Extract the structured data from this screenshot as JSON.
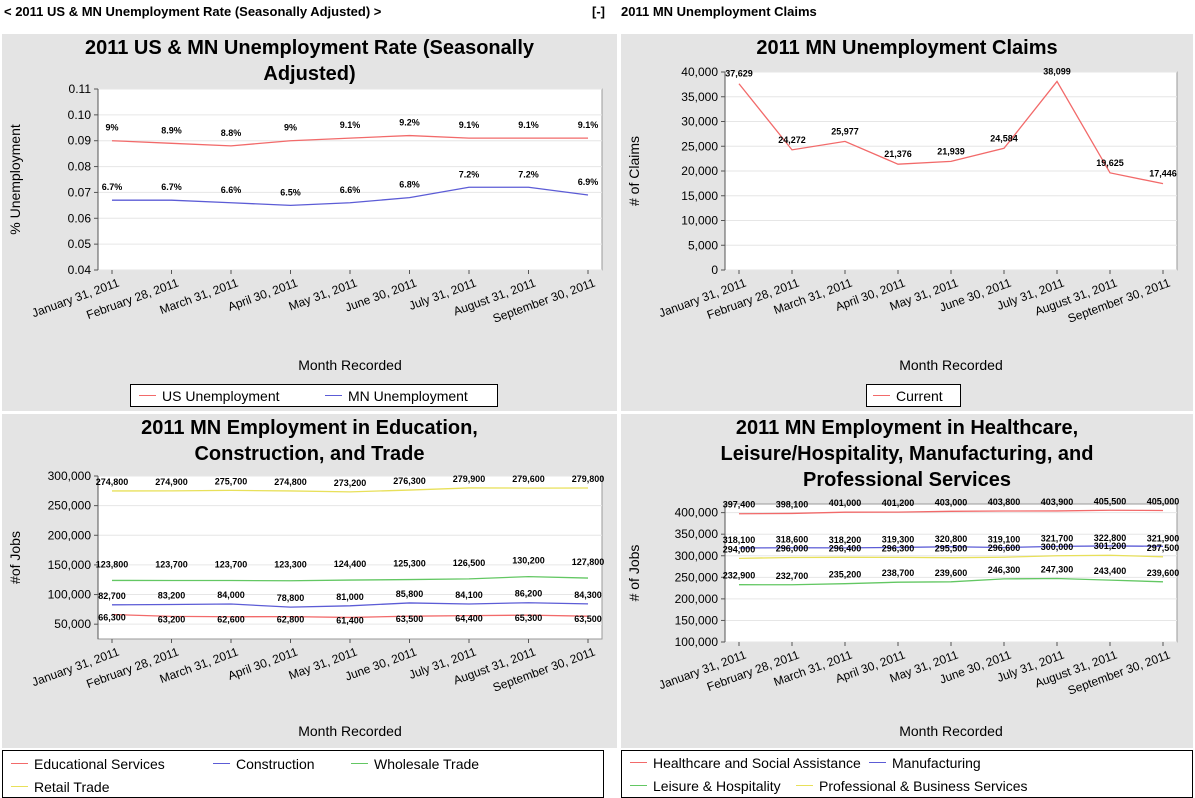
{
  "top_bar": {
    "left_nav": "< 2011 US & MN Unemployment Rate (Seasonally Adjusted) >",
    "toggle": "[-]",
    "right_title": "2011 MN Unemployment Claims"
  },
  "colors": {
    "red": "#f26a6a",
    "blue": "#5c5cd6",
    "green": "#63c763",
    "yellow": "#e8e05a",
    "gridline": "#e6e6e6",
    "panel_bg": "#e4e4e4"
  },
  "chart_data": [
    {
      "id": "chart1",
      "type": "line",
      "title_lines": [
        "2011 US & MN Unemployment Rate (Seasonally",
        "Adjusted)"
      ],
      "xlabel": "Month Recorded",
      "ylabel": "% Unemployment",
      "categories": [
        "January 31, 2011",
        "February 28, 2011",
        "March 31, 2011",
        "April 30, 2011",
        "May 31, 2011",
        "June 30, 2011",
        "July 31, 2011",
        "August 31, 2011",
        "September 30, 2011"
      ],
      "ylim": [
        0.04,
        0.11
      ],
      "yticks": [
        0.04,
        0.05,
        0.06,
        0.07,
        0.08,
        0.09,
        0.1,
        0.11
      ],
      "ytick_labels": [
        "0.04",
        "0.05",
        "0.06",
        "0.07",
        "0.08",
        "0.09",
        "0.10",
        "0.11"
      ],
      "grid": true,
      "series": [
        {
          "name": "US Unemployment",
          "color": "red",
          "values": [
            0.09,
            0.089,
            0.088,
            0.09,
            0.091,
            0.092,
            0.091,
            0.091,
            0.091
          ],
          "labels": [
            "9%",
            "8.9%",
            "8.8%",
            "9%",
            "9.1%",
            "9.2%",
            "9.1%",
            "9.1%",
            "9.1%"
          ]
        },
        {
          "name": "MN Unemployment",
          "color": "blue",
          "values": [
            0.067,
            0.067,
            0.066,
            0.065,
            0.066,
            0.068,
            0.072,
            0.072,
            0.069
          ],
          "labels": [
            "6.7%",
            "6.7%",
            "6.6%",
            "6.5%",
            "6.6%",
            "6.8%",
            "7.2%",
            "7.2%",
            "6.9%"
          ]
        }
      ]
    },
    {
      "id": "chart2",
      "type": "line",
      "title_lines": [
        "2011 MN Unemployment Claims"
      ],
      "xlabel": "Month Recorded",
      "ylabel": "# of Claims",
      "categories": [
        "January 31, 2011",
        "February 28, 2011",
        "March 31, 2011",
        "April 30, 2011",
        "May 31, 2011",
        "June 30, 2011",
        "July 31, 2011",
        "August 31, 2011",
        "September 30, 2011"
      ],
      "ylim": [
        0,
        40000
      ],
      "yticks": [
        0,
        5000,
        10000,
        15000,
        20000,
        25000,
        30000,
        35000,
        40000
      ],
      "ytick_labels": [
        "0",
        "5,000",
        "10,000",
        "15,000",
        "20,000",
        "25,000",
        "30,000",
        "35,000",
        "40,000"
      ],
      "grid": true,
      "series": [
        {
          "name": "Current",
          "color": "red",
          "values": [
            37629,
            24272,
            25977,
            21376,
            21939,
            24584,
            38099,
            19625,
            17446
          ],
          "labels": [
            "37,629",
            "24,272",
            "25,977",
            "21,376",
            "21,939",
            "24,584",
            "38,099",
            "19,625",
            "17,446"
          ]
        }
      ]
    },
    {
      "id": "chart3",
      "type": "line",
      "title_lines": [
        "2011 MN Employment in Education,",
        "Construction, and Trade"
      ],
      "xlabel": "Month Recorded",
      "ylabel": "#of Jobs",
      "categories": [
        "January 31, 2011",
        "February 28, 2011",
        "March 31, 2011",
        "April 30, 2011",
        "May 31, 2011",
        "June 30, 2011",
        "July 31, 2011",
        "August 31, 2011",
        "September 30, 2011"
      ],
      "ylim": [
        25000,
        300000
      ],
      "yticks": [
        50000,
        100000,
        150000,
        200000,
        250000,
        300000
      ],
      "ytick_labels": [
        "50,000",
        "100,000",
        "150,000",
        "200,000",
        "250,000",
        "300,000"
      ],
      "grid": true,
      "series": [
        {
          "name": "Educational Services",
          "color": "red",
          "values": [
            66300,
            63200,
            62600,
            62800,
            61400,
            63500,
            64400,
            65300,
            63500
          ],
          "labels": [
            "66,300",
            "63,200",
            "62,600",
            "62,800",
            "61,400",
            "63,500",
            "64,400",
            "65,300",
            "63,500"
          ]
        },
        {
          "name": "Construction",
          "color": "blue",
          "values": [
            82700,
            83200,
            84000,
            78800,
            81000,
            85800,
            84100,
            86200,
            84300
          ],
          "labels": [
            "82,700",
            "83,200",
            "84,000",
            "78,800",
            "81,000",
            "85,800",
            "84,100",
            "86,200",
            "84,300"
          ]
        },
        {
          "name": "Wholesale Trade",
          "color": "green",
          "values": [
            123800,
            123700,
            123700,
            123300,
            124400,
            125300,
            126500,
            130200,
            127800
          ],
          "labels": [
            "123,800",
            "123,700",
            "123,700",
            "123,300",
            "124,400",
            "125,300",
            "126,500",
            "130,200",
            "127,800"
          ]
        },
        {
          "name": "Retail Trade",
          "color": "yellow",
          "values": [
            274800,
            274900,
            275700,
            274800,
            273200,
            276300,
            279900,
            279600,
            279800
          ],
          "labels": [
            "274,800",
            "274,900",
            "275,700",
            "274,800",
            "273,200",
            "276,300",
            "279,900",
            "279,600",
            "279,800"
          ]
        }
      ]
    },
    {
      "id": "chart4",
      "type": "line",
      "title_lines": [
        "2011 MN Employment in Healthcare,",
        "Leisure/Hospitality, Manufacturing, and",
        "Professional Services"
      ],
      "xlabel": "Month Recorded",
      "ylabel": "# of Jobs",
      "categories": [
        "January 31, 2011",
        "February 28, 2011",
        "March 31, 2011",
        "April 30, 2011",
        "May 31, 2011",
        "June 30, 2011",
        "July 31, 2011",
        "August 31, 2011",
        "September 30, 2011"
      ],
      "ylim": [
        100000,
        420000
      ],
      "yticks": [
        100000,
        150000,
        200000,
        250000,
        300000,
        350000,
        400000
      ],
      "ytick_labels": [
        "100,000",
        "150,000",
        "200,000",
        "250,000",
        "300,000",
        "350,000",
        "400,000"
      ],
      "grid": true,
      "series": [
        {
          "name": "Healthcare and Social Assistance",
          "color": "red",
          "values": [
            397400,
            398100,
            401000,
            401200,
            403000,
            403800,
            403900,
            405500,
            405000
          ],
          "labels": [
            "397,400",
            "398,100",
            "401,000",
            "401,200",
            "403,000",
            "403,800",
            "403,900",
            "405,500",
            "405,000"
          ]
        },
        {
          "name": "Manufacturing",
          "color": "blue",
          "values": [
            318100,
            318600,
            318200,
            319300,
            320800,
            319100,
            321700,
            322800,
            321900
          ],
          "labels": [
            "318,100",
            "318,600",
            "318,200",
            "319,300",
            "320,800",
            "319,100",
            "321,700",
            "322,800",
            "321,900"
          ]
        },
        {
          "name": "Leisure & Hospitality",
          "color": "green",
          "values": [
            232900,
            232700,
            235200,
            238700,
            239600,
            246300,
            247300,
            243400,
            239600
          ],
          "labels": [
            "232,900",
            "232,700",
            "235,200",
            "238,700",
            "239,600",
            "246,300",
            "247,300",
            "243,400",
            "239,600"
          ]
        },
        {
          "name": "Professional & Business Services",
          "color": "yellow",
          "values": [
            294000,
            296000,
            296400,
            296300,
            295500,
            296600,
            300000,
            301200,
            297500
          ],
          "labels": [
            "294,000",
            "296,000",
            "296,400",
            "296,300",
            "295,500",
            "296,600",
            "300,000",
            "301,200",
            "297,500"
          ]
        }
      ]
    }
  ]
}
